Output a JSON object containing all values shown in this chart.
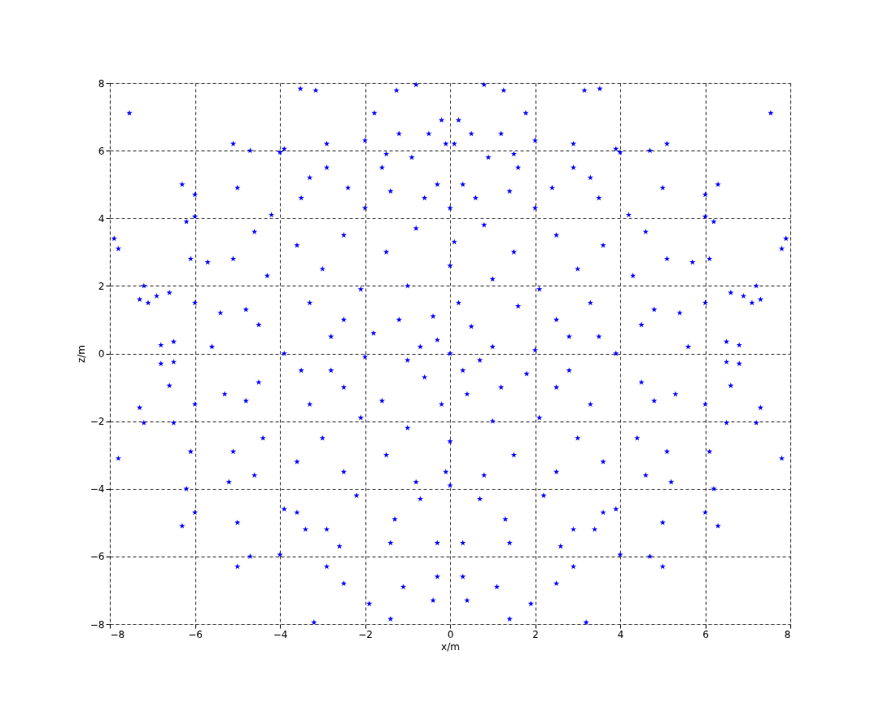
{
  "chart_data": {
    "type": "scatter",
    "xlabel": "x/m",
    "ylabel": "z/m",
    "xlim": [
      -8,
      8
    ],
    "xticks": [
      -8,
      -6,
      -4,
      -2,
      0,
      2,
      4,
      6,
      8
    ],
    "ylim": [
      -8,
      8
    ],
    "yticks": [
      -8,
      -6,
      -4,
      -2,
      0,
      2,
      4,
      6,
      8
    ],
    "grid": true,
    "marker": "star",
    "series": [
      {
        "color": "#0000ff",
        "x": [
          -7.54,
          -7.9,
          -7.8,
          -7.8,
          -7.2,
          -7.3,
          -7.1,
          -6.9,
          -6.6,
          -6.8,
          -6.5,
          -6.8,
          -6.5,
          -6.6,
          -6.5,
          -7.3,
          -7.2,
          -6.2,
          -6.3,
          -6.0,
          -6.0,
          -6.1,
          -6.0,
          -6.0,
          -6.1,
          -6.2,
          -6.0,
          -6.3,
          -5.7,
          -5.6,
          -5.4,
          -5.3,
          -5.2,
          -5.0,
          -5.0,
          -5.1,
          -5.0,
          -4.7,
          -4.7,
          -4.6,
          -4.6,
          -4.4,
          -4.3,
          -4.2,
          -4.0,
          -4.0,
          -4.5,
          -4.5,
          -5.1,
          -5.1,
          -4.8,
          -4.8
        ],
        "values": [
          7.11,
          3.4,
          3.1,
          -3.1,
          2.0,
          1.6,
          1.5,
          1.7,
          1.8,
          0.25,
          0.35,
          -0.3,
          -0.25,
          -0.95,
          -2.05,
          -1.6,
          -2.05,
          3.9,
          5.0,
          4.7,
          4.05,
          2.8,
          1.5,
          -1.5,
          -2.9,
          -4.0,
          -4.7,
          -5.1,
          2.7,
          0.2,
          1.2,
          -1.2,
          -3.8,
          -5.0,
          -6.3,
          6.2,
          4.9,
          6.0,
          -6.0,
          3.6,
          -3.6,
          -2.5,
          2.3,
          4.1,
          5.95,
          -5.95,
          0.85,
          -0.85,
          2.8,
          -2.9,
          -1.4,
          1.3
        ]
      },
      {
        "color": "#0000ff",
        "x": [
          7.54,
          7.9,
          7.8,
          7.8,
          7.2,
          7.3,
          7.1,
          6.9,
          6.6,
          6.8,
          6.5,
          6.8,
          6.5,
          6.6,
          6.5,
          7.3,
          7.2,
          6.2,
          6.3,
          6.0,
          6.0,
          6.1,
          6.0,
          6.0,
          6.1,
          6.2,
          6.0,
          6.3,
          5.7,
          5.6,
          5.4,
          5.3,
          5.2,
          5.0,
          5.0,
          5.1,
          5.0,
          4.7,
          4.7,
          4.6,
          4.6,
          4.4,
          4.3,
          4.2,
          4.0,
          4.0,
          4.5,
          4.5,
          5.1,
          5.1,
          4.8,
          4.8
        ],
        "values": [
          7.11,
          3.4,
          3.1,
          -3.1,
          2.0,
          1.6,
          1.5,
          1.7,
          1.8,
          0.25,
          0.35,
          -0.3,
          -0.25,
          -0.95,
          -2.05,
          -1.6,
          -2.05,
          3.9,
          5.0,
          4.7,
          4.05,
          2.8,
          1.5,
          -1.5,
          -2.9,
          -4.0,
          -4.7,
          -5.1,
          2.7,
          0.2,
          1.2,
          -1.2,
          -3.8,
          -5.0,
          -6.3,
          6.2,
          4.9,
          6.0,
          -6.0,
          3.6,
          -3.6,
          -2.5,
          2.3,
          4.1,
          5.95,
          -5.95,
          0.85,
          -0.85,
          2.8,
          -2.9,
          -1.4,
          1.3
        ]
      },
      {
        "color": "#0000ff",
        "x": [
          -3.52,
          -3.16,
          -1.78,
          -1.26,
          -0.8,
          -2.9,
          -3.9,
          -3.3,
          -2.9,
          -3.5,
          -2.4,
          -2.0,
          -1.5,
          -1.2,
          -0.5,
          -0.2,
          -0.1,
          -2.0,
          -1.4,
          -0.6,
          -1.6,
          -0.9,
          -0.3
        ],
        "values": [
          7.83,
          7.78,
          7.11,
          7.78,
          7.95,
          6.2,
          6.05,
          5.2,
          5.5,
          4.6,
          4.9,
          6.3,
          5.9,
          6.5,
          6.5,
          6.9,
          6.2,
          4.3,
          4.8,
          4.6,
          5.5,
          5.8,
          5.0
        ]
      },
      {
        "color": "#0000ff",
        "x": [
          3.52,
          3.16,
          1.78,
          1.26,
          0.8,
          2.9,
          3.9,
          3.3,
          2.9,
          3.5,
          2.4,
          2.0,
          1.5,
          1.2,
          0.5,
          0.2,
          0.1,
          2.0,
          1.4,
          0.6,
          1.6,
          0.9,
          0.3
        ],
        "values": [
          7.83,
          7.78,
          7.11,
          7.78,
          7.95,
          6.2,
          6.05,
          5.2,
          5.5,
          4.6,
          4.9,
          6.3,
          5.9,
          6.5,
          6.5,
          6.9,
          6.2,
          4.3,
          4.8,
          4.6,
          5.5,
          5.8,
          5.0
        ]
      },
      {
        "color": "#0000ff",
        "x": [
          -3.2,
          -1.4,
          -1.9,
          -2.5,
          -1.1,
          -0.4,
          -0.3,
          -2.9,
          -2.6,
          -3.4,
          -3.9,
          -1.4,
          -0.3,
          -2.2,
          -1.3,
          -0.7,
          -3.6,
          -2.9
        ],
        "values": [
          -7.95,
          -7.85,
          -7.4,
          -6.8,
          -6.9,
          -7.3,
          -6.6,
          -6.3,
          -5.7,
          -5.2,
          -4.6,
          -5.6,
          -5.6,
          -4.2,
          -4.9,
          -4.3,
          -4.7,
          -5.2
        ]
      },
      {
        "color": "#0000ff",
        "x": [
          3.2,
          1.4,
          1.9,
          2.5,
          1.1,
          0.4,
          0.3,
          2.9,
          2.6,
          3.4,
          3.9,
          1.4,
          0.3,
          2.2,
          1.3,
          0.7,
          3.6,
          2.9
        ],
        "values": [
          -7.95,
          -7.85,
          -7.4,
          -6.8,
          -6.9,
          -7.3,
          -6.6,
          -6.3,
          -5.7,
          -5.2,
          -4.6,
          -5.6,
          -5.6,
          -4.2,
          -4.9,
          -4.3,
          -4.7,
          -5.2
        ]
      },
      {
        "color": "#0000ff",
        "x": [
          0,
          0.3,
          -0.3,
          0.5,
          -0.6,
          1,
          -1,
          1.2,
          -1.2,
          0.2,
          -0.2,
          1.6,
          -1.6,
          2,
          -2,
          2.1,
          -2.1,
          -2.1,
          2.1,
          0,
          0,
          0.1,
          -0.1,
          0,
          0,
          2.8,
          -2.8,
          -2.8,
          2.8,
          3.3,
          -3.3,
          -3.3,
          3.3,
          3.9,
          -3.9,
          3,
          -3,
          -3,
          3,
          1.5,
          -1.5,
          -1.5,
          1.5,
          2.5,
          -2.5,
          -2.5,
          2.5,
          3.6,
          -3.6,
          -3.6,
          3.6,
          1,
          -1,
          1,
          -1,
          2.5,
          -2.5,
          -2.5,
          2.5,
          3.5,
          -3.5,
          0.7,
          -0.7,
          0.4,
          -0.4,
          1.8,
          -1.8,
          0.8,
          -0.8,
          -0.8,
          0.8
        ],
        "values": [
          0,
          -0.5,
          0.4,
          0.8,
          -0.7,
          0.2,
          -0.2,
          -1,
          1,
          1.5,
          -1.5,
          1.4,
          -1.4,
          0.1,
          -0.1,
          1.9,
          -1.9,
          1.9,
          -1.9,
          2.6,
          -2.6,
          3.3,
          -3.5,
          4.3,
          -3.9,
          0.5,
          -0.5,
          0.5,
          -0.5,
          1.5,
          -1.5,
          1.5,
          -1.5,
          0,
          0,
          2.5,
          -2.5,
          2.5,
          -2.5,
          3,
          -3,
          3,
          -3,
          3.5,
          -3.5,
          3.5,
          -3.5,
          3.2,
          -3.2,
          3.2,
          -3.2,
          -2,
          2,
          2.2,
          -2.2,
          1,
          -1,
          1,
          -1,
          0.5,
          -0.5,
          -0.2,
          0.2,
          -1.2,
          1.1,
          -0.6,
          0.6,
          3.8,
          -3.8,
          3.7,
          -3.6
        ]
      }
    ]
  }
}
